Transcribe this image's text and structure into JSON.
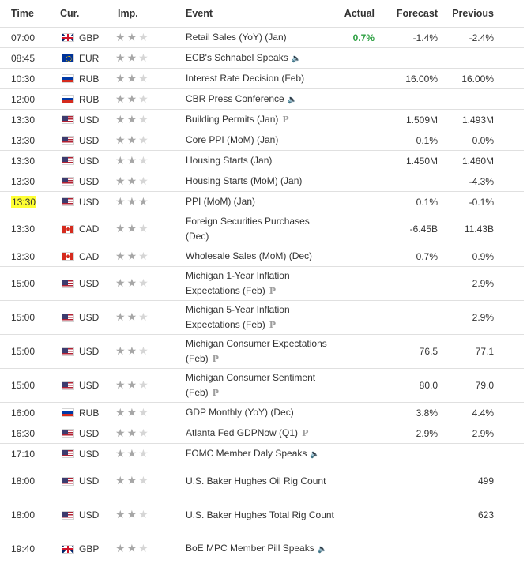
{
  "headers": {
    "time": "Time",
    "currency": "Cur.",
    "importance": "Imp.",
    "event": "Event",
    "actual": "Actual",
    "forecast": "Forecast",
    "previous": "Previous"
  },
  "star_glyph": "★★★",
  "rows": [
    {
      "time": "07:00",
      "currency": "GBP",
      "flag": "gbp",
      "importance": 2,
      "event": "Retail Sales (YoY) (Jan)",
      "event_icon": "",
      "actual": "0.7%",
      "actual_status": "better",
      "forecast": "-1.4%",
      "previous": "-2.4%",
      "tall": false
    },
    {
      "time": "08:45",
      "currency": "EUR",
      "flag": "eur",
      "importance": 2,
      "event": "ECB's Schnabel Speaks",
      "event_icon": "speaker-icon",
      "actual": "",
      "forecast": "",
      "previous": "",
      "tall": false
    },
    {
      "time": "10:30",
      "currency": "RUB",
      "flag": "rub",
      "importance": 2,
      "event": "Interest Rate Decision (Feb)",
      "event_icon": "",
      "actual": "",
      "forecast": "16.00%",
      "previous": "16.00%",
      "tall": false
    },
    {
      "time": "12:00",
      "currency": "RUB",
      "flag": "rub",
      "importance": 2,
      "event": "CBR Press Conference",
      "event_icon": "speaker-icon",
      "actual": "",
      "forecast": "",
      "previous": "",
      "tall": false
    },
    {
      "time": "13:30",
      "currency": "USD",
      "flag": "usd",
      "importance": 2,
      "event": "Building Permits (Jan)",
      "event_icon": "preliminary-icon",
      "actual": "",
      "forecast": "1.509M",
      "previous": "1.493M",
      "tall": false
    },
    {
      "time": "13:30",
      "currency": "USD",
      "flag": "usd",
      "importance": 2,
      "event": "Core PPI (MoM) (Jan)",
      "event_icon": "",
      "actual": "",
      "forecast": "0.1%",
      "previous": "0.0%",
      "tall": false
    },
    {
      "time": "13:30",
      "currency": "USD",
      "flag": "usd",
      "importance": 2,
      "event": "Housing Starts (Jan)",
      "event_icon": "",
      "actual": "",
      "forecast": "1.450M",
      "previous": "1.460M",
      "tall": false
    },
    {
      "time": "13:30",
      "currency": "USD",
      "flag": "usd",
      "importance": 2,
      "event": "Housing Starts (MoM) (Jan)",
      "event_icon": "",
      "actual": "",
      "forecast": "",
      "previous": "-4.3%",
      "tall": false
    },
    {
      "time": "13:30",
      "currency": "USD",
      "flag": "usd",
      "importance": 3,
      "event": "PPI (MoM) (Jan)",
      "event_icon": "",
      "actual": "",
      "forecast": "0.1%",
      "previous": "-0.1%",
      "tall": false,
      "highlight_time": true
    },
    {
      "time": "13:30",
      "currency": "CAD",
      "flag": "cad",
      "importance": 2,
      "event": "Foreign Securities Purchases (Dec)",
      "event_icon": "",
      "actual": "",
      "forecast": "-6.45B",
      "previous": "11.43B",
      "tall": true
    },
    {
      "time": "13:30",
      "currency": "CAD",
      "flag": "cad",
      "importance": 2,
      "event": "Wholesale Sales (MoM) (Dec)",
      "event_icon": "",
      "actual": "",
      "forecast": "0.7%",
      "previous": "0.9%",
      "tall": false
    },
    {
      "time": "15:00",
      "currency": "USD",
      "flag": "usd",
      "importance": 2,
      "event": "Michigan 1-Year Inflation Expectations (Feb)",
      "event_icon": "preliminary-icon",
      "actual": "",
      "forecast": "",
      "previous": "2.9%",
      "tall": true
    },
    {
      "time": "15:00",
      "currency": "USD",
      "flag": "usd",
      "importance": 2,
      "event": "Michigan 5-Year Inflation Expectations (Feb)",
      "event_icon": "preliminary-icon",
      "actual": "",
      "forecast": "",
      "previous": "2.9%",
      "tall": true
    },
    {
      "time": "15:00",
      "currency": "USD",
      "flag": "usd",
      "importance": 2,
      "event": "Michigan Consumer Expectations (Feb)",
      "event_icon": "preliminary-icon",
      "actual": "",
      "forecast": "76.5",
      "previous": "77.1",
      "tall": true
    },
    {
      "time": "15:00",
      "currency": "USD",
      "flag": "usd",
      "importance": 2,
      "event": "Michigan Consumer Sentiment (Feb)",
      "event_icon": "preliminary-icon",
      "actual": "",
      "forecast": "80.0",
      "previous": "79.0",
      "tall": true
    },
    {
      "time": "16:00",
      "currency": "RUB",
      "flag": "rub",
      "importance": 2,
      "event": "GDP Monthly (YoY) (Dec)",
      "event_icon": "",
      "actual": "",
      "forecast": "3.8%",
      "previous": "4.4%",
      "tall": false
    },
    {
      "time": "16:30",
      "currency": "USD",
      "flag": "usd",
      "importance": 2,
      "event": "Atlanta Fed GDPNow (Q1)",
      "event_icon": "preliminary-icon",
      "actual": "",
      "forecast": "2.9%",
      "previous": "2.9%",
      "tall": false
    },
    {
      "time": "17:10",
      "currency": "USD",
      "flag": "usd",
      "importance": 2,
      "event": "FOMC Member Daly Speaks",
      "event_icon": "speaker-icon",
      "actual": "",
      "forecast": "",
      "previous": "",
      "tall": false
    },
    {
      "time": "18:00",
      "currency": "USD",
      "flag": "usd",
      "importance": 2,
      "event": "U.S. Baker Hughes Oil Rig Count",
      "event_icon": "",
      "actual": "",
      "forecast": "",
      "previous": "499",
      "tall": true
    },
    {
      "time": "18:00",
      "currency": "USD",
      "flag": "usd",
      "importance": 2,
      "event": "U.S. Baker Hughes Total Rig Count",
      "event_icon": "",
      "actual": "",
      "forecast": "",
      "previous": "623",
      "tall": true
    },
    {
      "time": "19:40",
      "currency": "GBP",
      "flag": "gbp",
      "importance": 2,
      "event": "BoE MPC Member Pill Speaks",
      "event_icon": "speaker-icon",
      "actual": "",
      "forecast": "",
      "previous": "",
      "tall": true
    }
  ],
  "colors": {
    "actual_better": "#2ea043",
    "star_active": "#a7a7a7",
    "star_inactive": "#d6d6d6",
    "time_highlight": "#ffff33"
  }
}
